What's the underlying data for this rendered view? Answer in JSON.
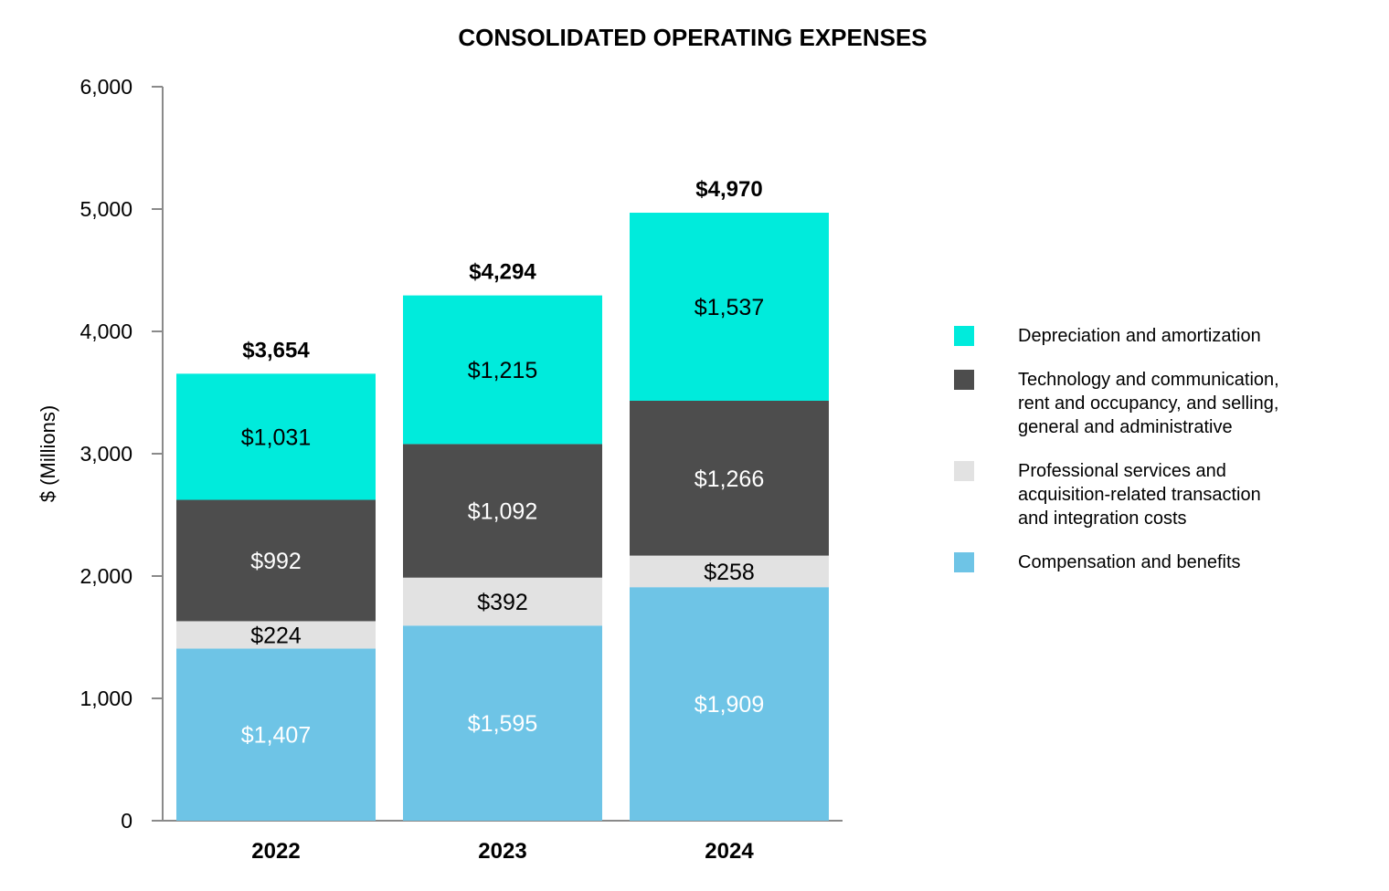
{
  "chart_data": {
    "type": "bar",
    "stacked": true,
    "title": "CONSOLIDATED OPERATING EXPENSES",
    "xlabel": "",
    "ylabel": "$ (Millions)",
    "ylim": [
      0,
      6000
    ],
    "yticks": [
      0,
      1000,
      2000,
      3000,
      4000,
      5000,
      6000
    ],
    "ytick_labels": [
      "0",
      "1,000",
      "2,000",
      "3,000",
      "4,000",
      "5,000",
      "6,000"
    ],
    "categories": [
      "2022",
      "2023",
      "2024"
    ],
    "series": [
      {
        "name": "Compensation and benefits",
        "color": "#6EC4E6",
        "label_color": "#ffffff",
        "values": [
          1407,
          1595,
          1909
        ],
        "labels": [
          "$1,407",
          "$1,595",
          "$1,909"
        ]
      },
      {
        "name": "Professional services and\n acquisition-related transaction\n and integration costs",
        "color": "#E2E2E2",
        "label_color": "#000000",
        "values": [
          224,
          392,
          258
        ],
        "labels": [
          "$224",
          "$392",
          "$258"
        ]
      },
      {
        "name": "Technology and communication,\nrent and occupancy, and selling,\ngeneral and administrative",
        "color": "#4D4D4D",
        "label_color": "#ffffff",
        "values": [
          992,
          1092,
          1266
        ],
        "labels": [
          "$992",
          "$1,092",
          "$1,266"
        ]
      },
      {
        "name": "Depreciation and amortization",
        "color": "#00EBDC",
        "label_color": "#000000",
        "values": [
          1031,
          1215,
          1537
        ],
        "labels": [
          "$1,031",
          "$1,215",
          "$1,537"
        ]
      }
    ],
    "totals": [
      3654,
      4294,
      4970
    ],
    "total_labels": [
      "$3,654",
      "$4,294",
      "$4,970"
    ],
    "legend_position": "right",
    "legend_order": [
      "Depreciation and amortization",
      "Technology and communication,\nrent and occupancy, and selling,\ngeneral and administrative",
      "Professional services and\n acquisition-related transaction\n and integration costs",
      "Compensation and benefits"
    ]
  }
}
